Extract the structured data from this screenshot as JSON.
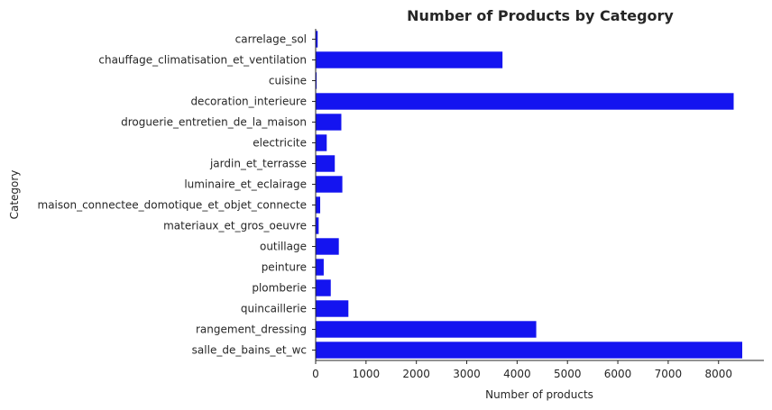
{
  "chart_data": {
    "type": "bar",
    "orientation": "horizontal",
    "title": "Number of Products by Category",
    "xlabel": "Number of products",
    "ylabel": "Category",
    "xlim": [
      0,
      8900
    ],
    "xticks": [
      "0",
      "1000",
      "2000",
      "3000",
      "4000",
      "5000",
      "6000",
      "7000",
      "8000"
    ],
    "grid": false,
    "bar_color": "#1414f0",
    "categories": [
      "carrelage_sol",
      "chauffage_climatisation_et_ventilation",
      "cuisine",
      "decoration_interieure",
      "droguerie_entretien_de_la_maison",
      "electricite",
      "jardin_et_terrasse",
      "luminaire_et_eclairage",
      "maison_connectee_domotique_et_objet_connecte",
      "materiaux_et_gros_oeuvre",
      "outillage",
      "peinture",
      "plomberie",
      "quincaillerie",
      "rangement_dressing",
      "salle_de_bains_et_wc"
    ],
    "values": [
      40,
      3710,
      20,
      8300,
      510,
      220,
      380,
      530,
      90,
      60,
      460,
      160,
      300,
      650,
      4380,
      8470
    ]
  }
}
